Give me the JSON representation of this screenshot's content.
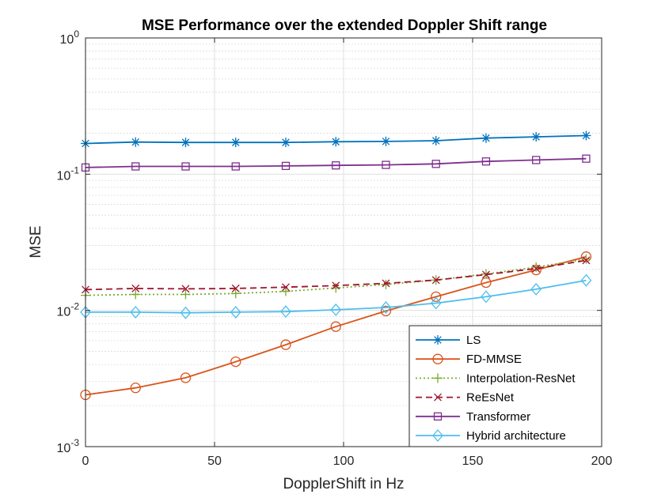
{
  "chart_data": {
    "type": "line",
    "title": "MSE Performance over the extended Doppler Shift range",
    "xlabel": "DopplerShift in Hz",
    "ylabel": "MSE",
    "xlim": [
      0,
      200
    ],
    "ylim": [
      0.001,
      1
    ],
    "yscale": "log",
    "grid": true,
    "legend_position": "bottom-right",
    "x_ticks": [
      {
        "value": 0,
        "label": "0"
      },
      {
        "value": 50,
        "label": "50"
      },
      {
        "value": 100,
        "label": "100"
      },
      {
        "value": 150,
        "label": "150"
      },
      {
        "value": 200,
        "label": "200"
      }
    ],
    "y_ticks": [
      {
        "value": 0.001,
        "base": "10",
        "exp": "-3"
      },
      {
        "value": 0.01,
        "base": "10",
        "exp": "-2"
      },
      {
        "value": 0.1,
        "base": "10",
        "exp": "-1"
      },
      {
        "value": 1,
        "base": "10",
        "exp": "0"
      }
    ],
    "x": [
      0,
      19.4,
      38.8,
      58.2,
      77.6,
      97,
      116.4,
      135.8,
      155.2,
      174.6,
      194
    ],
    "series": [
      {
        "name": "LS",
        "color": "#0072BD",
        "marker": "asterisk",
        "dash": "solid",
        "values": [
          0.168,
          0.172,
          0.171,
          0.171,
          0.171,
          0.173,
          0.174,
          0.176,
          0.184,
          0.188,
          0.192
        ]
      },
      {
        "name": "FD-MMSE",
        "color": "#D95319",
        "marker": "circle",
        "dash": "solid",
        "values": [
          0.0024,
          0.0027,
          0.0032,
          0.0042,
          0.0056,
          0.0076,
          0.0099,
          0.0126,
          0.016,
          0.0198,
          0.0248
        ]
      },
      {
        "name": "Interpolation-ResNet",
        "color": "#77AC30",
        "marker": "plus",
        "dash": "dotted",
        "values": [
          0.0129,
          0.0131,
          0.0131,
          0.0133,
          0.0138,
          0.0146,
          0.0155,
          0.0167,
          0.0185,
          0.0208,
          0.0238
        ]
      },
      {
        "name": "ReEsNet",
        "color": "#A2142F",
        "marker": "cross",
        "dash": "dashed",
        "values": [
          0.0142,
          0.0145,
          0.0144,
          0.0145,
          0.0148,
          0.0152,
          0.0158,
          0.0167,
          0.0183,
          0.0203,
          0.0233
        ]
      },
      {
        "name": "Transformer",
        "color": "#7E2F8E",
        "marker": "square",
        "dash": "solid",
        "values": [
          0.112,
          0.114,
          0.114,
          0.114,
          0.115,
          0.116,
          0.117,
          0.119,
          0.124,
          0.127,
          0.13
        ]
      },
      {
        "name": "Hybrid architecture",
        "color": "#4DBEEE",
        "marker": "diamond",
        "dash": "solid",
        "values": [
          0.0097,
          0.0097,
          0.0096,
          0.0097,
          0.0098,
          0.0101,
          0.0105,
          0.0113,
          0.0126,
          0.0143,
          0.0166
        ]
      }
    ]
  }
}
